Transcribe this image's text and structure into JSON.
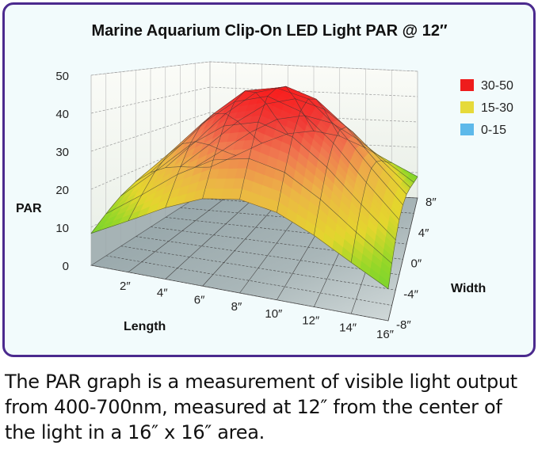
{
  "caption": "The PAR graph is a measurement of visible light output from 400-700nm, measured at 12″ from the center of the light in a 16″ x 16″ area.",
  "chart_data": {
    "type": "surface",
    "title": "Marine Aquarium Clip-On LED Light PAR @ 12″",
    "zlabel": "PAR",
    "xlabel": "Length",
    "ylabel": "Width",
    "z_ticks": [
      "0",
      "10",
      "20",
      "30",
      "40",
      "50"
    ],
    "z_tick_values": [
      0,
      10,
      20,
      30,
      40,
      50
    ],
    "zlim": [
      0,
      50
    ],
    "x_ticks": [
      "2″",
      "4″",
      "6″",
      "8″",
      "10″",
      "12″",
      "14″",
      "16″"
    ],
    "x_tick_values": [
      2,
      4,
      6,
      8,
      10,
      12,
      14,
      16
    ],
    "xlim": [
      0,
      16
    ],
    "y_ticks": [
      "-8″",
      "-4″",
      "0″",
      "4″",
      "8″"
    ],
    "y_tick_values": [
      -8,
      -4,
      0,
      4,
      8
    ],
    "ylim": [
      -8,
      8
    ],
    "grid": true,
    "legend": {
      "placement": "top-right",
      "items": [
        {
          "label": "30-50",
          "color": "#ee1c1c"
        },
        {
          "label": "15-30",
          "color": "#e6da3a"
        },
        {
          "label": "0-15",
          "color": "#5db9ea"
        }
      ]
    },
    "length_values": [
      0,
      2,
      4,
      6,
      8,
      10,
      12,
      14,
      16
    ],
    "width_values": [
      -8,
      -6,
      -4,
      -2,
      0,
      2,
      4,
      6,
      8
    ],
    "par_values": [
      [
        8.4,
        13.5,
        18.8,
        23.0,
        24.6,
        23.0,
        18.8,
        13.5,
        8.4
      ],
      [
        11.5,
        18.4,
        25.7,
        31.4,
        33.5,
        31.4,
        25.7,
        18.4,
        11.5
      ],
      [
        14.4,
        23.0,
        32.1,
        39.2,
        41.9,
        39.2,
        32.1,
        23.0,
        14.4
      ],
      [
        16.5,
        26.3,
        36.7,
        44.8,
        47.9,
        44.8,
        36.7,
        26.3,
        16.5
      ],
      [
        17.2,
        27.5,
        38.3,
        46.8,
        49.0,
        46.8,
        38.3,
        27.5,
        17.2
      ],
      [
        16.5,
        26.3,
        36.7,
        44.8,
        47.9,
        44.8,
        36.7,
        26.3,
        16.5
      ],
      [
        14.4,
        23.0,
        32.1,
        39.2,
        41.9,
        39.2,
        32.1,
        23.0,
        14.4
      ],
      [
        11.5,
        18.4,
        25.7,
        31.4,
        33.5,
        31.4,
        25.7,
        18.4,
        11.5
      ],
      [
        8.4,
        13.5,
        18.8,
        23.0,
        24.6,
        23.0,
        18.8,
        13.5,
        8.4
      ]
    ]
  }
}
